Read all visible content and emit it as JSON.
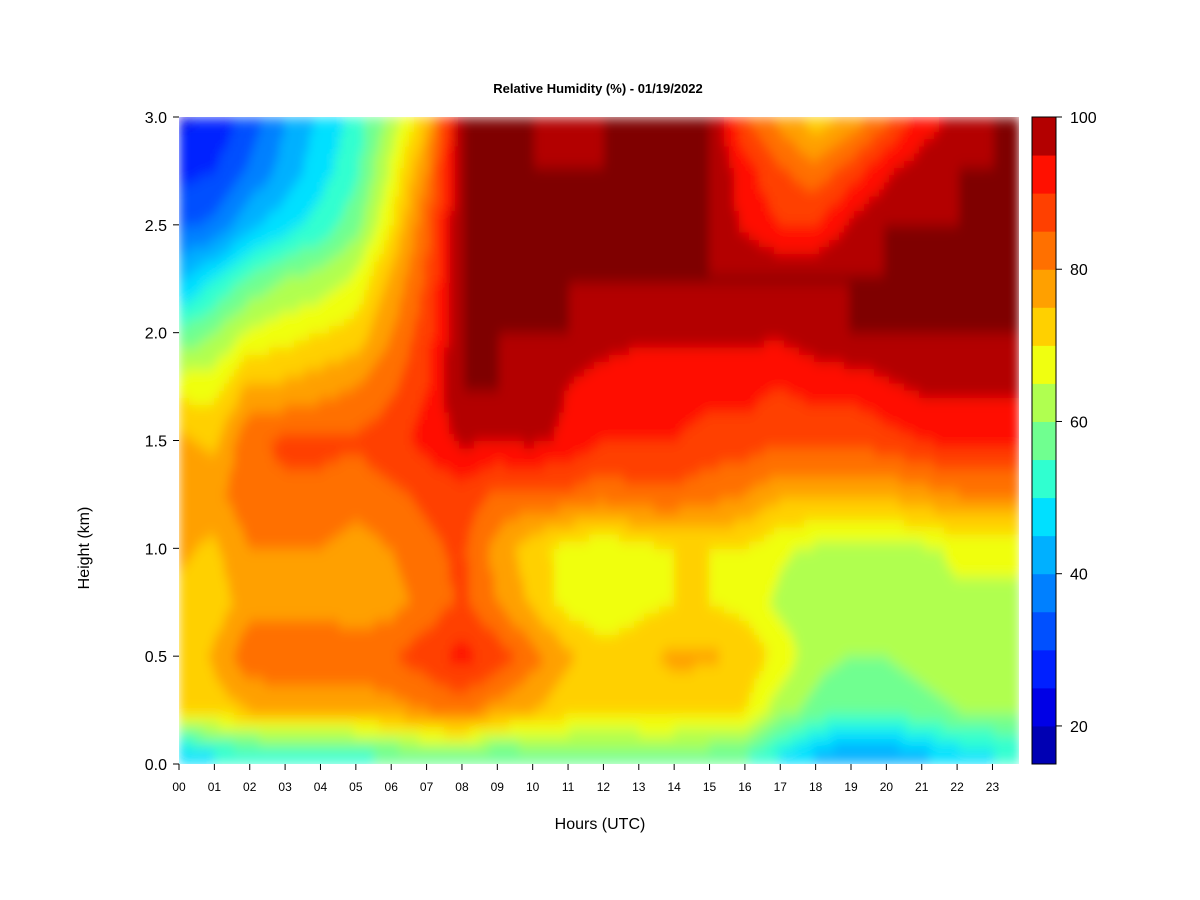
{
  "chart_data": {
    "type": "heatmap",
    "title": "Relative Humidity (%) - 01/19/2022",
    "xlabel": "Hours (UTC)",
    "ylabel": "Height (km)",
    "x_ticks": [
      "00",
      "01",
      "02",
      "03",
      "04",
      "05",
      "06",
      "07",
      "08",
      "09",
      "10",
      "11",
      "12",
      "13",
      "14",
      "15",
      "16",
      "17",
      "18",
      "19",
      "20",
      "21",
      "22",
      "23"
    ],
    "xlim": [
      0,
      23.75
    ],
    "y_ticks": [
      "0.0",
      "0.5",
      "1.0",
      "1.5",
      "2.0",
      "2.5",
      "3.0"
    ],
    "ylim": [
      0,
      3.0
    ],
    "colorbar": {
      "ticks": [
        "20",
        "40",
        "60",
        "80",
        "100"
      ],
      "range": [
        15,
        100
      ],
      "levels": [
        15,
        20,
        25,
        30,
        35,
        40,
        45,
        50,
        55,
        60,
        65,
        70,
        75,
        80,
        85,
        90,
        95,
        100
      ],
      "colors": [
        "#00007f",
        "#0000b3",
        "#0000e6",
        "#0020ff",
        "#0050ff",
        "#0080ff",
        "#00b0ff",
        "#00e0ff",
        "#30ffd0",
        "#70ff90",
        "#b0ff50",
        "#f0ff10",
        "#ffd000",
        "#ffa000",
        "#ff7000",
        "#ff4000",
        "#ff1000",
        "#b30000",
        "#7f0000"
      ]
    },
    "heights_km": [
      0.05,
      0.25,
      0.5,
      0.75,
      1.0,
      1.25,
      1.5,
      1.75,
      2.0,
      2.25,
      2.5,
      2.75,
      3.0
    ],
    "hours": [
      0,
      1,
      2,
      3,
      4,
      5,
      6,
      7,
      8,
      9,
      10,
      11,
      12,
      13,
      14,
      15,
      16,
      17,
      18,
      19,
      20,
      21,
      22,
      23,
      23.75
    ],
    "values": [
      [
        45,
        50,
        52,
        54,
        54,
        54,
        56,
        58,
        60,
        55,
        58,
        58,
        58,
        58,
        58,
        58,
        56,
        50,
        45,
        40,
        42,
        44,
        48,
        50,
        52
      ],
      [
        70,
        72,
        75,
        75,
        75,
        76,
        78,
        80,
        82,
        78,
        75,
        72,
        70,
        72,
        72,
        70,
        70,
        62,
        58,
        55,
        56,
        58,
        60,
        60,
        60
      ],
      [
        72,
        76,
        84,
        85,
        85,
        84,
        85,
        88,
        92,
        88,
        82,
        76,
        72,
        74,
        76,
        76,
        74,
        68,
        62,
        60,
        60,
        62,
        64,
        64,
        64
      ],
      [
        74,
        72,
        78,
        78,
        78,
        76,
        78,
        82,
        86,
        80,
        74,
        68,
        66,
        68,
        70,
        70,
        68,
        64,
        62,
        60,
        60,
        62,
        64,
        64,
        64
      ],
      [
        76,
        74,
        80,
        80,
        80,
        78,
        80,
        84,
        86,
        78,
        72,
        68,
        66,
        68,
        70,
        70,
        70,
        66,
        64,
        64,
        64,
        64,
        66,
        66,
        66
      ],
      [
        80,
        78,
        84,
        84,
        84,
        82,
        84,
        86,
        88,
        84,
        84,
        84,
        82,
        84,
        84,
        82,
        80,
        76,
        76,
        76,
        76,
        78,
        80,
        80,
        80
      ],
      [
        76,
        74,
        84,
        86,
        86,
        86,
        88,
        92,
        96,
        95,
        96,
        94,
        90,
        90,
        90,
        88,
        88,
        86,
        86,
        86,
        88,
        90,
        92,
        92,
        92
      ],
      [
        68,
        68,
        76,
        76,
        78,
        80,
        84,
        90,
        100,
        100,
        98,
        95,
        92,
        92,
        92,
        92,
        92,
        90,
        92,
        92,
        94,
        96,
        96,
        96,
        96
      ],
      [
        56,
        60,
        66,
        68,
        70,
        72,
        80,
        88,
        100,
        100,
        100,
        100,
        98,
        96,
        96,
        96,
        96,
        96,
        98,
        100,
        100,
        100,
        100,
        100,
        100
      ],
      [
        44,
        50,
        56,
        60,
        62,
        66,
        76,
        86,
        100,
        100,
        100,
        100,
        100,
        100,
        100,
        100,
        100,
        100,
        100,
        100,
        100,
        100,
        100,
        100,
        100
      ],
      [
        34,
        36,
        44,
        48,
        52,
        58,
        70,
        84,
        100,
        100,
        100,
        100,
        100,
        100,
        100,
        100,
        94,
        90,
        90,
        96,
        100,
        100,
        100,
        100,
        100
      ],
      [
        28,
        30,
        36,
        42,
        48,
        54,
        66,
        80,
        100,
        100,
        100,
        100,
        100,
        100,
        100,
        100,
        92,
        86,
        82,
        88,
        94,
        98,
        100,
        100,
        100
      ],
      [
        24,
        26,
        32,
        40,
        46,
        52,
        62,
        74,
        100,
        100,
        100,
        96,
        100,
        100,
        100,
        100,
        86,
        78,
        72,
        76,
        84,
        92,
        96,
        100,
        100
      ]
    ]
  }
}
